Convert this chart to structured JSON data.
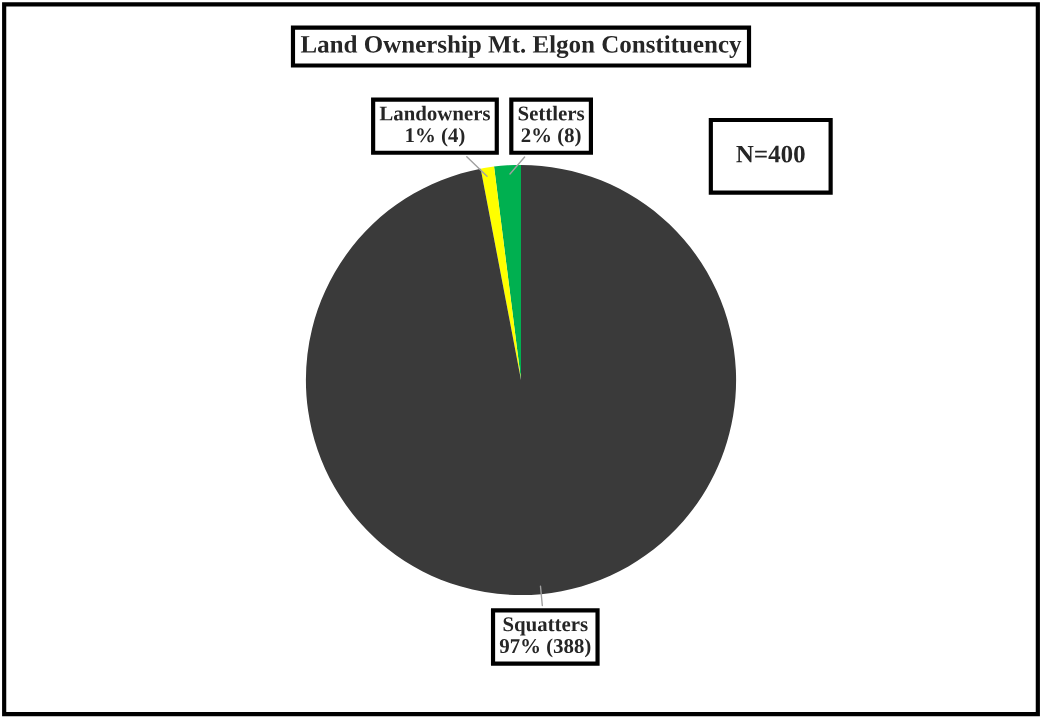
{
  "chart_data": {
    "type": "pie",
    "title": "Land Ownership Mt. Elgon Constituency",
    "categories": [
      "Settlers",
      "Landowners",
      "Squatters"
    ],
    "values": [
      8,
      4,
      388
    ],
    "colors": [
      "#00b050",
      "#ffff00",
      "#3a3a3a"
    ],
    "value_labels": [
      "2% (8)",
      "1% (4)",
      "97% (388)"
    ],
    "annotations": [
      "N=400"
    ]
  }
}
